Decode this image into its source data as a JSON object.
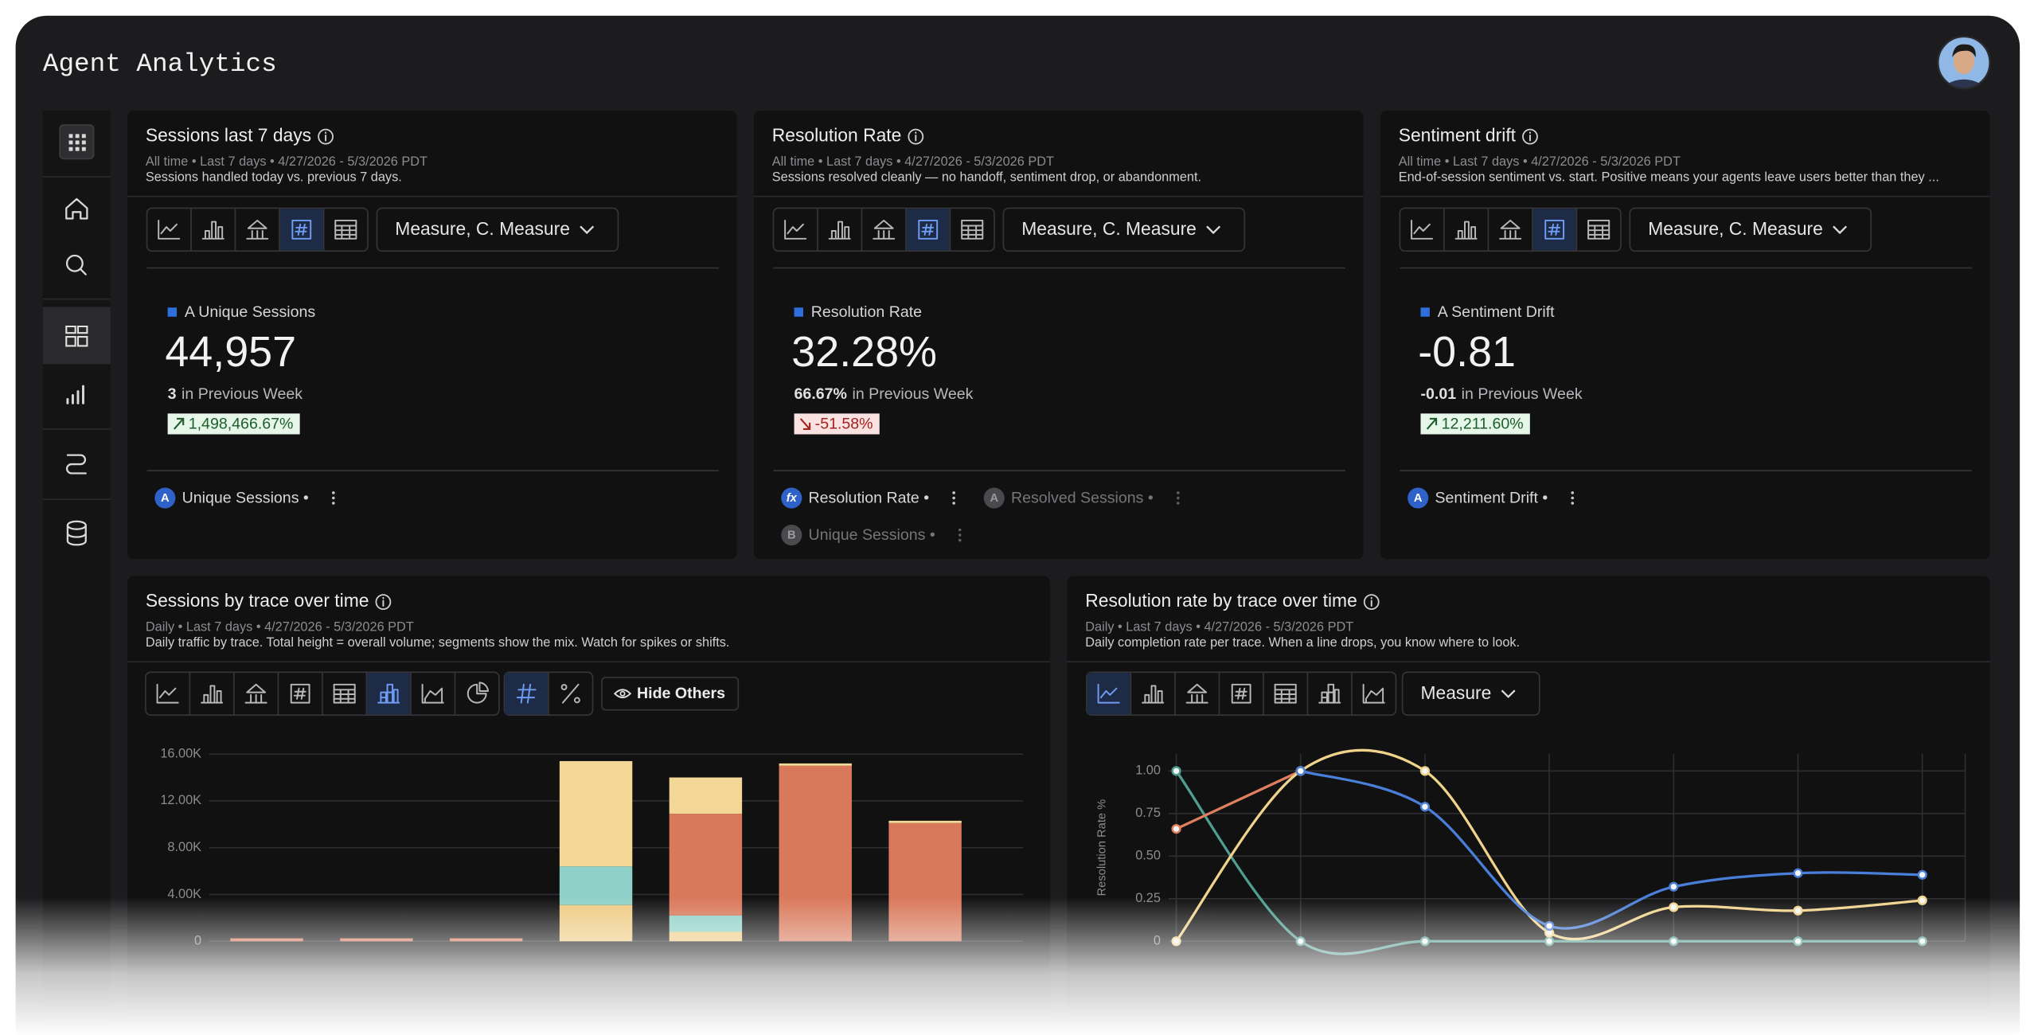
{
  "header": {
    "title": "Agent Analytics"
  },
  "cards": [
    {
      "title": "Sessions last 7 days",
      "meta": "All time • Last 7 days • 4/27/2026 - 5/3/2026 PDT",
      "description": "Sessions handled today vs. previous 7 days.",
      "dropdown": "Measure, C. Measure",
      "metric_label": "A Unique Sessions",
      "value": "44,957",
      "previous_value": "3",
      "previous_label": "in Previous Week",
      "change": "1,498,466.67%",
      "trend": "up",
      "items": [
        {
          "badge": "A",
          "label": "Unique Sessions •"
        }
      ]
    },
    {
      "title": "Resolution Rate",
      "meta": "All time • Last 7 days • 4/27/2026 - 5/3/2026 PDT",
      "description": "Sessions resolved cleanly — no handoff, sentiment drop, or abandonment.",
      "dropdown": "Measure, C. Measure",
      "metric_label": "Resolution Rate",
      "value": "32.28%",
      "previous_value": "66.67%",
      "previous_label": "in Previous Week",
      "change": "-51.58%",
      "trend": "down",
      "items": [
        {
          "badge": "fx",
          "label": "Resolution Rate •"
        },
        {
          "badge": "A",
          "label": "Resolved Sessions •",
          "muted": true
        },
        {
          "badge": "B",
          "label": "Unique Sessions •",
          "muted": true
        }
      ]
    },
    {
      "title": "Sentiment drift",
      "meta": "All time • Last 7 days • 4/27/2026 - 5/3/2026 PDT",
      "description": "End-of-session sentiment vs. start. Positive means your agents leave users better than they ...",
      "dropdown": "Measure, C. Measure",
      "metric_label": "A Sentiment Drift",
      "value": "-0.81",
      "previous_value": "-0.01",
      "previous_label": "in Previous Week",
      "change": "12,211.60%",
      "trend": "up",
      "items": [
        {
          "badge": "A",
          "label": "Sentiment Drift •"
        }
      ]
    }
  ],
  "chart_data": [
    {
      "type": "bar",
      "stacked": true,
      "title": "Sessions by trace over time",
      "subtitle": "Daily • Last 7 days • 4/27/2026 - 5/3/2026 PDT",
      "description": "Daily traffic by trace. Total height = overall volume; segments show the mix. Watch for spikes or shifts.",
      "hide_button": "Hide Others",
      "categories": [
        null,
        null,
        null,
        null,
        null,
        null,
        null
      ],
      "series": [
        {
          "color": "#efcb83",
          "values": [
            0,
            0,
            0,
            3100,
            800,
            0,
            0
          ]
        },
        {
          "color": "#8fd1c8",
          "values": [
            0,
            0,
            0,
            3300,
            1400,
            0,
            0
          ]
        },
        {
          "color": "#d9785a",
          "values": [
            250,
            250,
            250,
            0,
            8700,
            15000,
            10100
          ]
        },
        {
          "color": "#f2d796",
          "values": [
            0,
            0,
            0,
            9000,
            3100,
            200,
            200
          ]
        }
      ],
      "ylim": [
        0,
        16500
      ],
      "yticks": [
        0,
        {
          "value": 4000,
          "label": "4.00K"
        },
        {
          "value": 8000,
          "label": "8.00K"
        },
        {
          "value": 12000,
          "label": "12.00K"
        },
        {
          "value": 16000,
          "label": "16.00K"
        }
      ],
      "grid": true
    },
    {
      "type": "line",
      "title": "Resolution rate by trace over time",
      "subtitle": "Daily • Last 7 days • 4/27/2026 - 5/3/2026 PDT",
      "description": "Daily completion rate per trace. When a line drops, you know where to look.",
      "dropdown": "Measure",
      "ylabel": "Resolution Rate %",
      "categories": [
        null,
        null,
        null,
        null,
        null,
        null,
        null
      ],
      "series": [
        {
          "color": "#4f9e90",
          "values": [
            1.0,
            0,
            0,
            0,
            0,
            0,
            0
          ]
        },
        {
          "color": "#e07f5f",
          "values": [
            0.66,
            1.0,
            null,
            null,
            null,
            null,
            null
          ]
        },
        {
          "color": "#f0d38b",
          "values": [
            0,
            1.0,
            1.0,
            0.05,
            0.2,
            0.18,
            0.24
          ]
        },
        {
          "color": "#4a7fd9",
          "values": [
            null,
            1.0,
            0.79,
            0.09,
            0.32,
            0.4,
            0.39
          ]
        }
      ],
      "ylim": [
        0,
        1.1
      ],
      "yticks": [
        0,
        {
          "value": 0.25,
          "label": "0.25"
        },
        {
          "value": 0.5,
          "label": "0.50"
        },
        {
          "value": 0.75,
          "label": "0.75"
        },
        {
          "value": 1,
          "label": "1.00"
        }
      ],
      "grid": true
    }
  ]
}
